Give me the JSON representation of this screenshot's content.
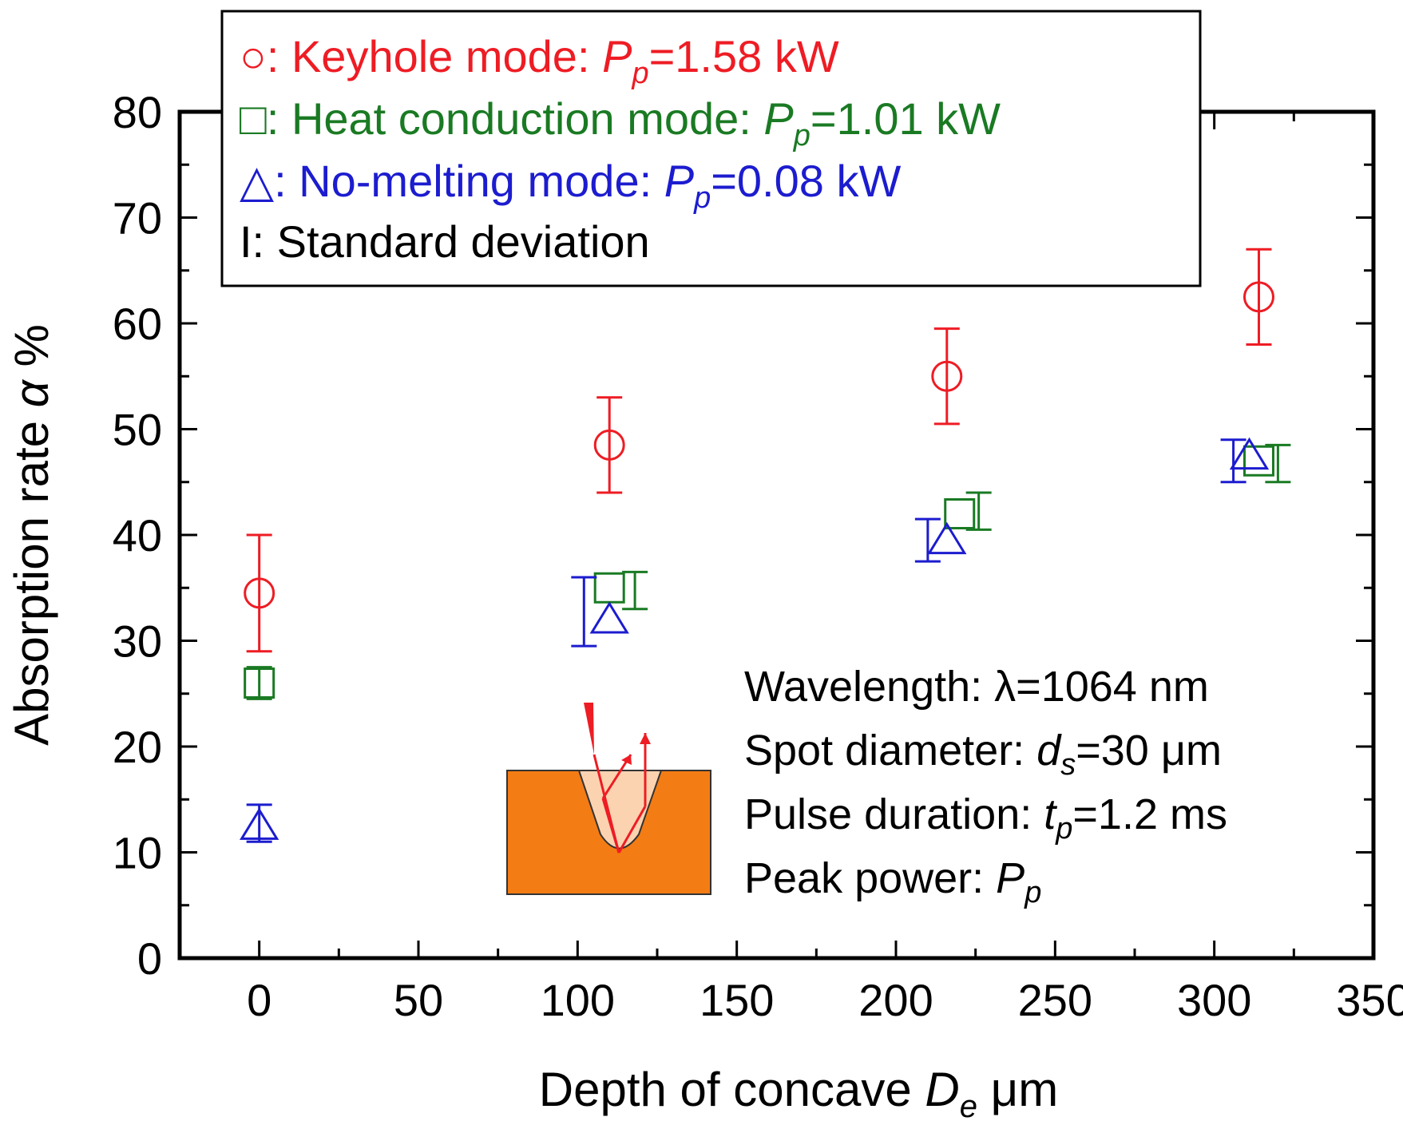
{
  "chart_data": {
    "type": "scatter",
    "title": "",
    "xlabel_prefix": "Depth of concave ",
    "xlabel_var": "D",
    "xlabel_sub": "e",
    "xlabel_unit": " μm",
    "ylabel_prefix": "Absorption rate ",
    "ylabel_var": "α",
    "ylabel_unit": " %",
    "xlim": [
      -25,
      350
    ],
    "ylim": [
      0,
      80
    ],
    "xticks": [
      0,
      50,
      100,
      150,
      200,
      250,
      300,
      350
    ],
    "yticks": [
      0,
      10,
      20,
      30,
      40,
      50,
      60,
      70,
      80
    ],
    "legend_location": "top",
    "series": [
      {
        "name": "Keyhole mode",
        "marker": "circle",
        "color": "#ee1c24",
        "label_prefix": "○: Keyhole mode: ",
        "label_value": "=1.58 kW",
        "points": [
          {
            "x": 0,
            "y": 34.5,
            "err_low": 29.0,
            "err_high": 40.0,
            "err_x": 0
          },
          {
            "x": 110,
            "y": 48.5,
            "err_low": 44.0,
            "err_high": 53.0,
            "err_x": 110
          },
          {
            "x": 216,
            "y": 55.0,
            "err_low": 50.5,
            "err_high": 59.5,
            "err_x": 216
          },
          {
            "x": 314,
            "y": 62.5,
            "err_low": 58.0,
            "err_high": 67.0,
            "err_x": 314
          }
        ]
      },
      {
        "name": "Heat conduction mode",
        "marker": "square",
        "color": "#1a7a23",
        "label_prefix": "□: Heat conduction mode: ",
        "label_value": "=1.01 kW",
        "points": [
          {
            "x": 0,
            "y": 26.0,
            "err_low": 24.5,
            "err_high": 27.5,
            "err_x": 0
          },
          {
            "x": 110,
            "y": 35.0,
            "err_low": 33.0,
            "err_high": 36.5,
            "err_x": 118
          },
          {
            "x": 220,
            "y": 42.0,
            "err_low": 40.5,
            "err_high": 44.0,
            "err_x": 226
          },
          {
            "x": 314,
            "y": 47.0,
            "err_low": 45.0,
            "err_high": 48.5,
            "err_x": 320
          }
        ]
      },
      {
        "name": "No-melting mode",
        "marker": "triangle",
        "color": "#1c1ccf",
        "label_prefix": "△: No-melting mode: ",
        "label_value": "=0.08 kW",
        "points": [
          {
            "x": 0,
            "y": 12.5,
            "err_low": 11.0,
            "err_high": 14.5,
            "err_x": 0
          },
          {
            "x": 110,
            "y": 32.0,
            "err_low": 29.5,
            "err_high": 36.0,
            "err_x": 102
          },
          {
            "x": 216,
            "y": 39.5,
            "err_low": 37.5,
            "err_high": 41.5,
            "err_x": 210
          },
          {
            "x": 311,
            "y": 47.5,
            "err_low": 45.0,
            "err_high": 49.0,
            "err_x": 306
          }
        ]
      }
    ],
    "legend_std_label": "I: Standard deviation",
    "legend_var": "P",
    "legend_sub": "p",
    "annotation": {
      "wavelength_prefix": "Wavelength: λ=1064 nm",
      "spot_prefix": "Spot diameter: ",
      "spot_var": "d",
      "spot_sub": "s",
      "spot_value": "=30 μm",
      "pulse_prefix": "Pulse duration: ",
      "pulse_var": "t",
      "pulse_sub": "p",
      "pulse_value": "=1.2 ms",
      "peak_prefix": "Peak power: ",
      "peak_var": "P",
      "peak_sub": "p"
    }
  },
  "colors": {
    "inset_substrate": "#f47c14",
    "inset_melt": "#fbd3b0",
    "inset_beam": "#ee1c24"
  }
}
